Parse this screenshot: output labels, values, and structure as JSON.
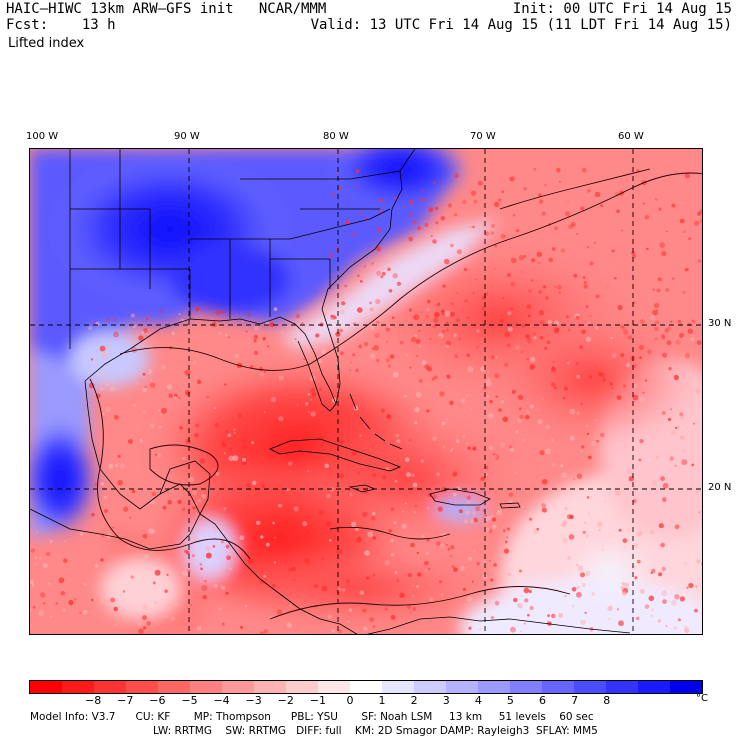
{
  "header": {
    "line1_left": "HAIC–HIWC 13km ARW–GFS init   NCAR/MMM",
    "line2_left": "Fcst:    13 h",
    "line1_right": "Init: 00 UTC Fri 14 Aug 15",
    "line2_right": "Valid: 13 UTC Fri 14 Aug 15 (11 LDT Fri 14 Aug 15)",
    "field": "Lifted index"
  },
  "map": {
    "longitude_labels": [
      "100 W",
      "90 W",
      "80 W",
      "70 W",
      "60 W"
    ],
    "latitude_labels": [
      "30 N",
      "20 N"
    ],
    "grid_style": "dashed",
    "positive_color": "#0000ee",
    "negative_color": "#ff0000"
  },
  "colorbar": {
    "tick_labels": [
      "−8",
      "−7",
      "−6",
      "−5",
      "−4",
      "−3",
      "−2",
      "−1",
      "0",
      "1",
      "2",
      "3",
      "4",
      "5",
      "6",
      "7",
      "8"
    ],
    "unit": "°C",
    "colors": [
      "#ff0000",
      "#ff1a1a",
      "#ff3333",
      "#ff4c4c",
      "#ff6666",
      "#ff8080",
      "#ff9999",
      "#ffb3b3",
      "#ffcccc",
      "#ffe6e6",
      "#ffffff",
      "#e6e6ff",
      "#ccccff",
      "#b3b3ff",
      "#9999ff",
      "#8080ff",
      "#6666ff",
      "#4c4cff",
      "#3333ff",
      "#1a1aff",
      "#0000ee"
    ]
  },
  "footer": {
    "line1": "Model Info: V3.7      CU: KF       MP: Thompson      PBL: YSU       SF: Noah LSM     13 km     51 levels    60 sec",
    "line2": "LW: RRTMG    SW: RRTMG   DIFF: full    KM: 2D Smagor DAMP: Rayleigh3  SFLAY: MM5"
  }
}
